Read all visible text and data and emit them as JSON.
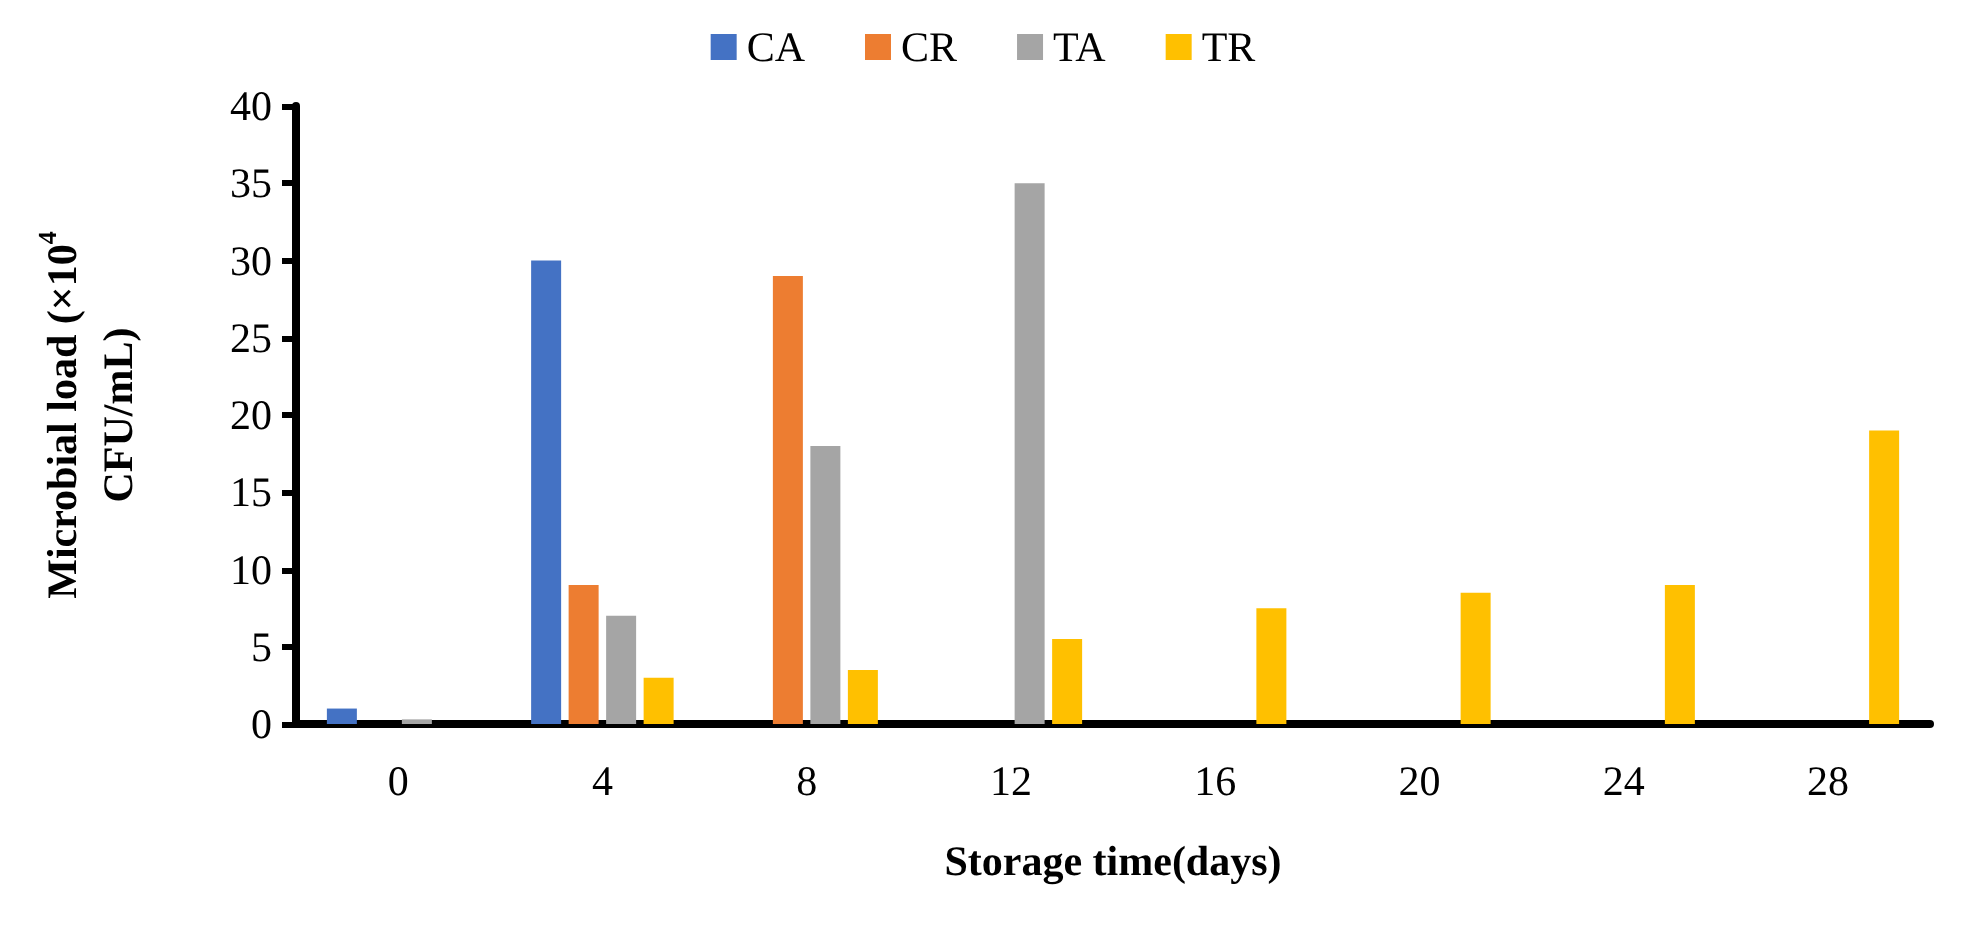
{
  "chart_data": {
    "type": "bar",
    "xlabel": "Storage time(days)",
    "ylabel": "Microbial load (×10$^{4}$\nCFU/mL)",
    "categories": [
      "0",
      "4",
      "8",
      "12",
      "16",
      "20",
      "24",
      "28"
    ],
    "series": [
      {
        "name": "CA",
        "color": "#4472c4",
        "values": [
          1,
          30,
          0,
          0,
          0,
          0,
          0,
          0
        ]
      },
      {
        "name": "CR",
        "color": "#ed7d31",
        "values": [
          0,
          9,
          29,
          0,
          0,
          0,
          0,
          0
        ]
      },
      {
        "name": "TA",
        "color": "#a5a5a5",
        "values": [
          0.3,
          7,
          18,
          35,
          0,
          0,
          0,
          0
        ]
      },
      {
        "name": "TR",
        "color": "#ffc000",
        "values": [
          0,
          3,
          3.5,
          5.5,
          7.5,
          8.5,
          9,
          19
        ]
      }
    ],
    "ylim": [
      0,
      40
    ],
    "yticks": [
      0,
      5,
      10,
      15,
      20,
      25,
      30,
      35,
      40
    ],
    "grid": false,
    "legend": "top"
  }
}
